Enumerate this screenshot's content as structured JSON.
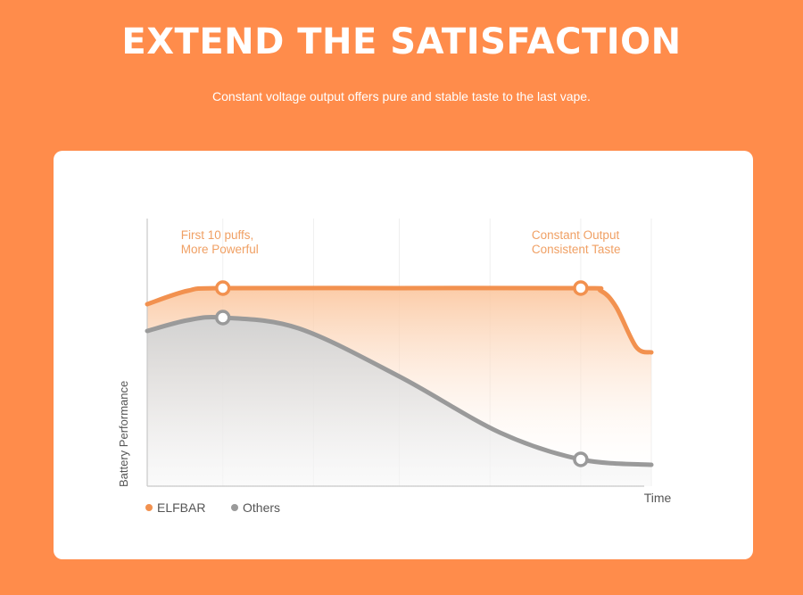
{
  "header": {
    "title": "EXTEND THE SATISFACTION",
    "subtitle": "Constant voltage output offers pure and stable taste to the last vape."
  },
  "colors": {
    "background": "#FF8C4B",
    "card": "#FFFFFF",
    "elfbar": "#F2914F",
    "others": "#9A9A9A",
    "annotation": "#F0A064",
    "axis": "#C8C8C8",
    "gridline": "#EEEEEE"
  },
  "chart_data": {
    "type": "line",
    "title": "",
    "xlabel": "Time",
    "ylabel": "Battery Performance",
    "xlim": [
      0,
      100
    ],
    "ylim": [
      0,
      100
    ],
    "grid": true,
    "legend_position": "bottom-left",
    "annotations": [
      {
        "line1": "First 10 puffs,",
        "line2": "More Powerful",
        "x": 15
      },
      {
        "line1": "Constant Output",
        "line2": "Consistent Taste",
        "x": 86
      }
    ],
    "series": [
      {
        "name": "ELFBAR",
        "color": "#F2914F",
        "points": [
          [
            0,
            68
          ],
          [
            8,
            73
          ],
          [
            15,
            74
          ],
          [
            50,
            74
          ],
          [
            86,
            74
          ],
          [
            90,
            73
          ],
          [
            93,
            67
          ],
          [
            97,
            52
          ],
          [
            100,
            50
          ]
        ],
        "markers": [
          [
            15,
            74
          ],
          [
            86,
            74
          ]
        ]
      },
      {
        "name": "Others",
        "color": "#9A9A9A",
        "points": [
          [
            0,
            58
          ],
          [
            8,
            62
          ],
          [
            15,
            63
          ],
          [
            30,
            59
          ],
          [
            50,
            41
          ],
          [
            70,
            20
          ],
          [
            86,
            10
          ],
          [
            100,
            8
          ]
        ],
        "markers": [
          [
            15,
            63
          ],
          [
            86,
            10
          ]
        ]
      }
    ]
  }
}
